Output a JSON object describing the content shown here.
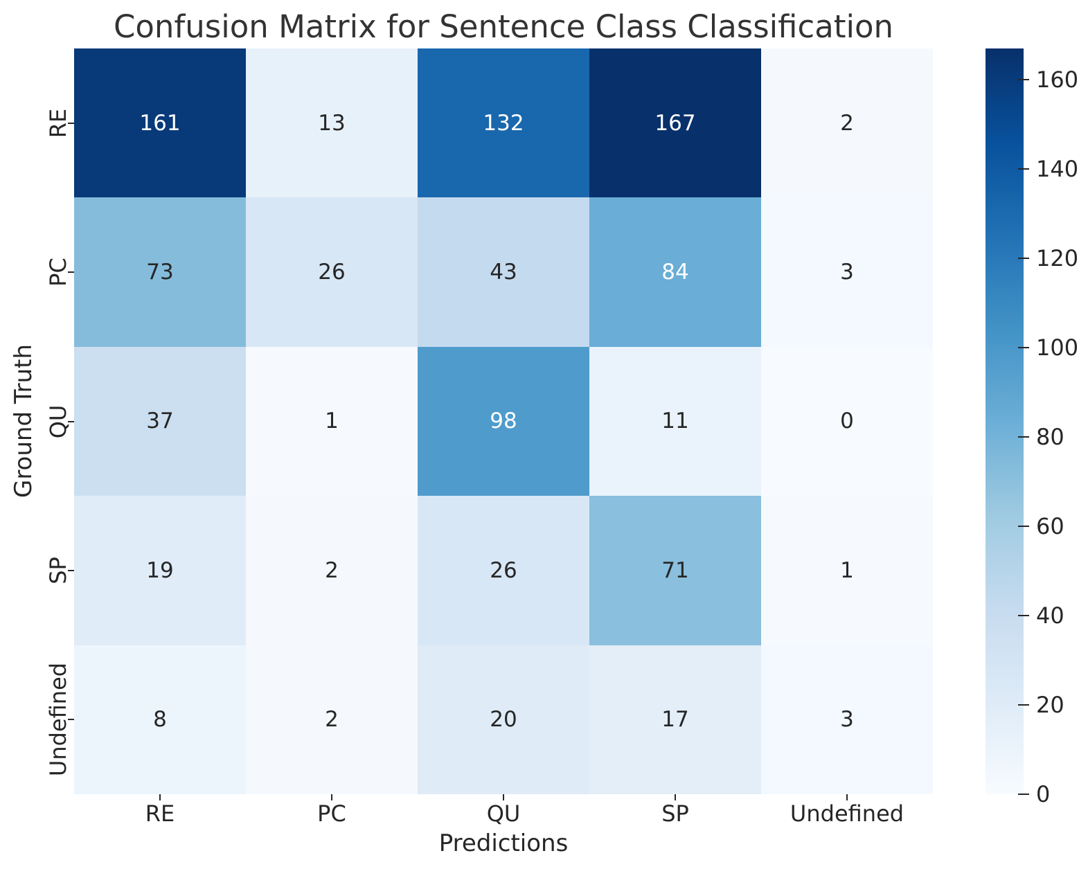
{
  "chart_data": {
    "type": "heatmap",
    "title": "Confusion Matrix for Sentence Class Classification",
    "xlabel": "Predictions",
    "ylabel": "Ground Truth",
    "x_categories": [
      "RE",
      "PC",
      "QU",
      "SP",
      "Undefined"
    ],
    "y_categories": [
      "RE",
      "PC",
      "QU",
      "SP",
      "Undefined"
    ],
    "matrix": [
      [
        161,
        13,
        132,
        167,
        2
      ],
      [
        73,
        26,
        43,
        84,
        3
      ],
      [
        37,
        1,
        98,
        11,
        0
      ],
      [
        19,
        2,
        26,
        71,
        1
      ],
      [
        8,
        2,
        20,
        17,
        3
      ]
    ],
    "vmin": 0,
    "vmax": 167,
    "colormap": "Blues",
    "colorbar_ticks": [
      0,
      20,
      40,
      60,
      80,
      100,
      120,
      140,
      160
    ],
    "legend_position": "right-colorbar",
    "grid": false,
    "annotated": true
  },
  "colors": {
    "background": "#ffffff",
    "title_text": "#333333",
    "axis_text": "#262626",
    "tick_mark": "#262626",
    "cell_text_dark": "#262626",
    "cell_text_light": "#ffffff",
    "blues_stops": [
      "#f7fbff",
      "#deebf7",
      "#c6dbef",
      "#9ecae1",
      "#6baed6",
      "#4292c6",
      "#2171b5",
      "#08519c",
      "#08306b"
    ]
  }
}
